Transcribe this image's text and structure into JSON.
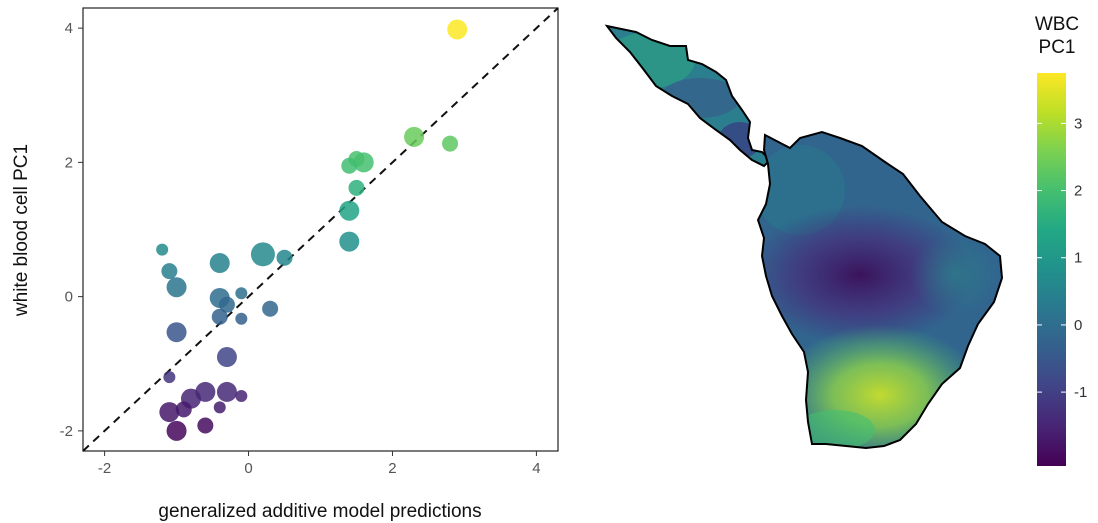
{
  "chart_data": [
    {
      "type": "scatter",
      "xlabel": "generalized additive model predictions",
      "ylabel": "white blood cell PC1",
      "xlim": [
        -2.3,
        4.3
      ],
      "ylim": [
        -2.3,
        4.3
      ],
      "xticks": [
        "-2",
        "0",
        "2",
        "4"
      ],
      "yticks": [
        "-2",
        "0",
        "2",
        "4"
      ],
      "x_tick_values": [
        -2,
        0,
        2,
        4
      ],
      "y_tick_values": [
        -2,
        0,
        2,
        4
      ],
      "reference_line": "y = x (dashed)",
      "grid": false,
      "color_scale": "viridis",
      "points": [
        {
          "x": 2.9,
          "y": 3.98,
          "size": 3
        },
        {
          "x": 2.3,
          "y": 2.38,
          "size": 3
        },
        {
          "x": 2.8,
          "y": 2.28,
          "size": 2
        },
        {
          "x": 1.6,
          "y": 2.0,
          "size": 3
        },
        {
          "x": 1.5,
          "y": 2.05,
          "size": 2
        },
        {
          "x": 1.4,
          "y": 1.95,
          "size": 2
        },
        {
          "x": 1.5,
          "y": 1.62,
          "size": 2
        },
        {
          "x": 1.4,
          "y": 1.28,
          "size": 3
        },
        {
          "x": 1.4,
          "y": 0.82,
          "size": 3
        },
        {
          "x": 0.2,
          "y": 0.63,
          "size": 4
        },
        {
          "x": 0.5,
          "y": 0.58,
          "size": 2
        },
        {
          "x": -0.4,
          "y": 0.5,
          "size": 3
        },
        {
          "x": -1.2,
          "y": 0.7,
          "size": 1
        },
        {
          "x": -1.1,
          "y": 0.38,
          "size": 2
        },
        {
          "x": -1.0,
          "y": 0.14,
          "size": 3
        },
        {
          "x": -0.1,
          "y": 0.05,
          "size": 1
        },
        {
          "x": -0.4,
          "y": -0.02,
          "size": 3
        },
        {
          "x": -0.3,
          "y": -0.12,
          "size": 2
        },
        {
          "x": 0.3,
          "y": -0.18,
          "size": 2
        },
        {
          "x": -0.4,
          "y": -0.3,
          "size": 2
        },
        {
          "x": -0.1,
          "y": -0.33,
          "size": 1
        },
        {
          "x": -1.0,
          "y": -0.53,
          "size": 3
        },
        {
          "x": -0.3,
          "y": -0.9,
          "size": 3
        },
        {
          "x": -1.1,
          "y": -1.2,
          "size": 1
        },
        {
          "x": -0.6,
          "y": -1.42,
          "size": 3
        },
        {
          "x": -0.3,
          "y": -1.42,
          "size": 3
        },
        {
          "x": -0.8,
          "y": -1.52,
          "size": 3
        },
        {
          "x": -0.1,
          "y": -1.48,
          "size": 1
        },
        {
          "x": -0.4,
          "y": -1.65,
          "size": 1
        },
        {
          "x": -1.1,
          "y": -1.72,
          "size": 3
        },
        {
          "x": -0.9,
          "y": -1.68,
          "size": 2
        },
        {
          "x": -0.6,
          "y": -1.92,
          "size": 2
        },
        {
          "x": -1.0,
          "y": -2.0,
          "size": 3
        }
      ]
    },
    {
      "type": "heatmap",
      "subject": "map of Central and South America",
      "legend_title": [
        "WBC",
        "PC1"
      ],
      "colorbar_ticks": [
        "3",
        "2",
        "1",
        "0",
        "-1"
      ],
      "colorbar_tick_values": [
        3,
        2,
        1,
        0,
        -1
      ],
      "colorbar_range": [
        -2.1,
        3.75
      ],
      "color_scale": "viridis"
    }
  ]
}
